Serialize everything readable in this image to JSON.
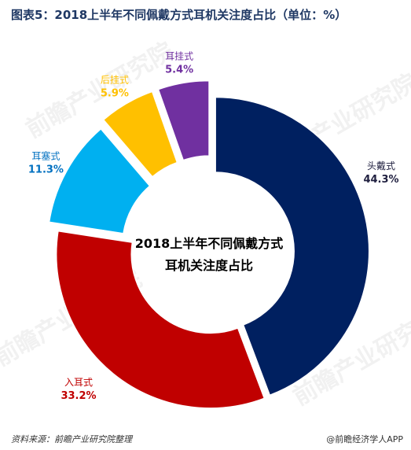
{
  "title": "图表5：2018上半年不同佩戴方式耳机关注度占比（单位：%）",
  "watermark": "前瞻产业研究院",
  "footer": {
    "source": "资料来源：前瞻产业研究院整理",
    "brand": "@前瞻经济学人APP"
  },
  "chart_data": {
    "type": "pie",
    "donut": true,
    "center_label_lines": [
      "2018上半年不同佩戴方式",
      "耳机关注度占比"
    ],
    "slices": [
      {
        "label": "头戴式",
        "value": 44.3,
        "value_label": "44.3%",
        "color": "#002060",
        "label_color": "#1f1f3f"
      },
      {
        "label": "入耳式",
        "value": 33.2,
        "value_label": "33.2%",
        "color": "#c00000",
        "label_color": "#c00000"
      },
      {
        "label": "耳塞式",
        "value": 11.3,
        "value_label": "11.3%",
        "color": "#00b0f0",
        "label_color": "#0070c0"
      },
      {
        "label": "后挂式",
        "value": 5.9,
        "value_label": "5.9%",
        "color": "#ffc000",
        "label_color": "#ffc000"
      },
      {
        "label": "耳挂式",
        "value": 5.4,
        "value_label": "5.4%",
        "color": "#7030a0",
        "label_color": "#7030a0"
      }
    ]
  }
}
